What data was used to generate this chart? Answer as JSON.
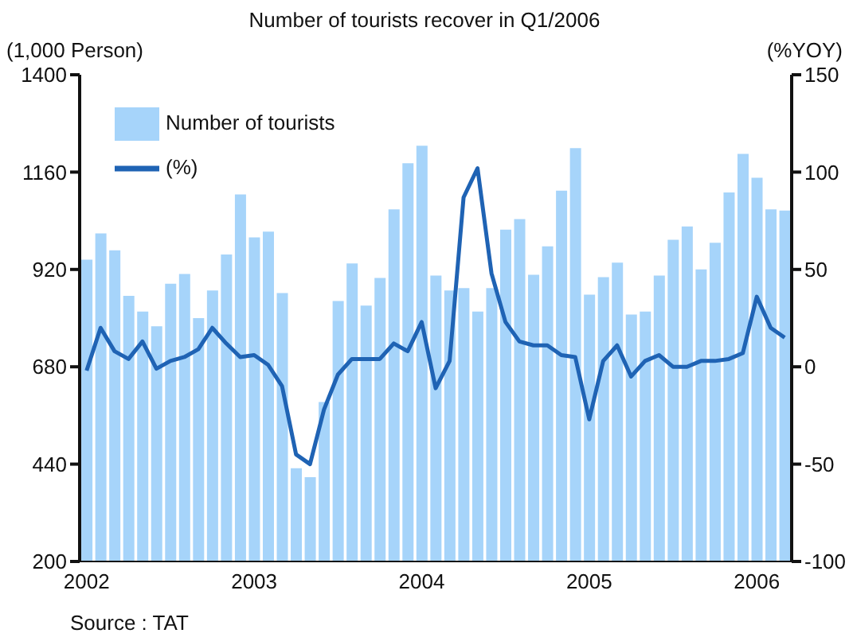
{
  "chart_data": {
    "type": "bar",
    "title": "Number of tourists recover in Q1/2006",
    "ylabel": "(1,000 Person)",
    "y2label": "(%YOY)",
    "annotations": [
      "Source : TAT"
    ],
    "categories": [
      "2002",
      null,
      null,
      null,
      null,
      null,
      null,
      null,
      null,
      null,
      null,
      null,
      "2003",
      null,
      null,
      null,
      null,
      null,
      null,
      null,
      null,
      null,
      null,
      null,
      "2004",
      null,
      null,
      null,
      null,
      null,
      null,
      null,
      null,
      null,
      null,
      null,
      "2005",
      null,
      null,
      null,
      null,
      null,
      null,
      null,
      null,
      null,
      null,
      null,
      "2006",
      null,
      null
    ],
    "series": [
      {
        "name": "Number of tourists",
        "color": "#a6d4fa",
        "values": [
          944,
          1009,
          967,
          855,
          816,
          780,
          885,
          909,
          800,
          868,
          957,
          1105,
          999,
          1013,
          862,
          430,
          408,
          593,
          842,
          935,
          831,
          899,
          1068,
          1182,
          1225,
          905,
          868,
          874,
          816,
          874,
          1018,
          1044,
          907,
          977,
          1114,
          1219,
          858,
          901,
          937,
          809,
          816,
          905,
          993,
          1026,
          920,
          986,
          1110,
          1205,
          1146,
          1068,
          1065
        ]
      },
      {
        "name": "(%)",
        "type": "line",
        "axis": "y2",
        "color": "#1f63b4",
        "values": [
          -2,
          20,
          8,
          4,
          13,
          -1,
          3,
          5,
          9,
          20,
          12,
          5,
          6,
          1,
          -10,
          -45,
          -50,
          -22,
          -4,
          4,
          4,
          4,
          12,
          8,
          23,
          -11,
          3,
          87,
          102,
          48,
          23,
          13,
          11,
          11,
          6,
          5,
          -27,
          3,
          11,
          -5,
          3,
          6,
          0,
          0,
          3,
          3,
          4,
          7,
          36,
          20,
          15
        ]
      }
    ],
    "ylim": [
      200,
      1400
    ],
    "yticks": [
      200,
      440,
      680,
      920,
      1160,
      1400
    ],
    "y2lim": [
      -100,
      150
    ],
    "y2ticks": [
      -100,
      -50,
      0,
      50,
      100,
      150
    ],
    "grid": false,
    "legend": "top left",
    "marker": "none",
    "line_style": "solid"
  }
}
